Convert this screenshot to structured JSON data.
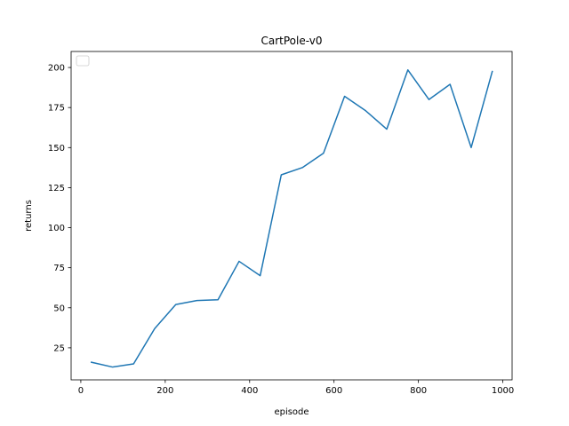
{
  "chart_data": {
    "type": "line",
    "title": "CartPole-v0",
    "xlabel": "episode",
    "ylabel": "returns",
    "xlim": [
      -23,
      1022
    ],
    "ylim": [
      5,
      210
    ],
    "xticks": [
      0,
      200,
      400,
      600,
      800,
      1000
    ],
    "yticks": [
      25,
      50,
      75,
      100,
      125,
      150,
      175,
      200
    ],
    "grid": false,
    "legend": {
      "placement": "top-left",
      "entries": []
    },
    "series": [
      {
        "color": "#1f77b4",
        "x": [
          25,
          75,
          125,
          175,
          225,
          275,
          325,
          375,
          425,
          475,
          525,
          575,
          625,
          675,
          725,
          775,
          825,
          875,
          925,
          975
        ],
        "y": [
          16.0,
          13.0,
          15.0,
          37.0,
          52.0,
          54.5,
          55.0,
          79.0,
          70.0,
          133.0,
          137.5,
          146.5,
          182.0,
          173.0,
          161.5,
          198.5,
          180.0,
          189.5,
          150.0,
          197.5
        ]
      }
    ]
  }
}
